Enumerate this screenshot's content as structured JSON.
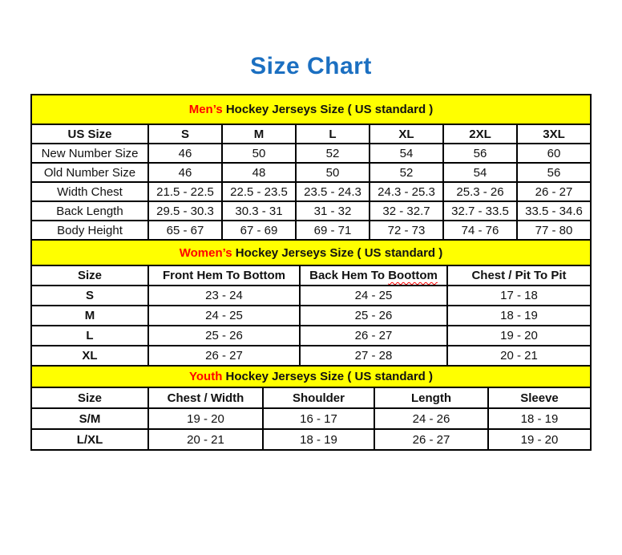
{
  "page": {
    "title": "Size Chart"
  },
  "colors": {
    "title_blue": "#1b6fc1",
    "banner_yellow": "#ffff00",
    "accent_red": "#ff0000",
    "border_black": "#000000"
  },
  "sections": [
    {
      "id": "mens",
      "banner_highlight": "Men’s",
      "banner_text": "Hockey Jerseys Size ( US standard )",
      "headers": [
        "US Size",
        "S",
        "M",
        "L",
        "XL",
        "2XL",
        "3XL"
      ],
      "rows": [
        [
          "New Number Size",
          "46",
          "50",
          "52",
          "54",
          "56",
          "60"
        ],
        [
          "Old Number Size",
          "46",
          "48",
          "50",
          "52",
          "54",
          "56"
        ],
        [
          "Width Chest",
          "21.5 - 22.5",
          "22.5 - 23.5",
          "23.5 - 24.3",
          "24.3 - 25.3",
          "25.3 - 26",
          "26 - 27"
        ],
        [
          "Back Length",
          "29.5 - 30.3",
          "30.3 - 31",
          "31 - 32",
          "32 - 32.7",
          "32.7 - 33.5",
          "33.5 - 34.6"
        ],
        [
          "Body Height",
          "65 - 67",
          "67 - 69",
          "69 - 71",
          "72 - 73",
          "74 - 76",
          "77 - 80"
        ]
      ]
    },
    {
      "id": "womens",
      "banner_highlight": "Women’s",
      "banner_text": "Hockey Jerseys Size ( US standard )",
      "headers": [
        "Size",
        "Front Hem To Bottom",
        "Back Hem To Boottom",
        "Chest / Pit To Pit"
      ],
      "misspelled_word": "Boottom",
      "rows": [
        [
          "S",
          "23 - 24",
          "24 - 25",
          "17 - 18"
        ],
        [
          "M",
          "24 - 25",
          "25 - 26",
          "18 - 19"
        ],
        [
          "L",
          "25 - 26",
          "26 - 27",
          "19 - 20"
        ],
        [
          "XL",
          "26 - 27",
          "27 - 28",
          "20 - 21"
        ]
      ]
    },
    {
      "id": "youth",
      "banner_highlight": "Youth",
      "banner_text": "Hockey Jerseys Size ( US standard )",
      "headers": [
        "Size",
        "Chest / Width",
        "Shoulder",
        "Length",
        "Sleeve"
      ],
      "rows": [
        [
          "S/M",
          "19 - 20",
          "16 - 17",
          "24 - 26",
          "18 - 19"
        ],
        [
          "L/XL",
          "20 - 21",
          "18 - 19",
          "26 - 27",
          "19 - 20"
        ]
      ]
    }
  ]
}
